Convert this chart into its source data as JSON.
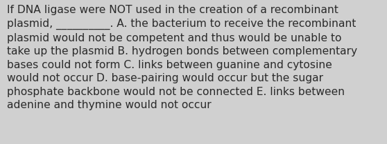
{
  "lines": [
    "If DNA ligase were NOT used in the creation of a recombinant",
    "plasmid, __________. A. the bacterium to receive the recombinant",
    "plasmid would not be competent and thus would be unable to",
    "take up the plasmid B. hydrogen bonds between complementary",
    "bases could not form C. links between guanine and cytosine",
    "would not occur D. base-pairing would occur but the sugar",
    "phosphate backbone would not be connected E. links between",
    "adenine and thymine would not occur"
  ],
  "background_color": "#d0d0d0",
  "text_color": "#2a2a2a",
  "font_size": 11.2,
  "fig_width": 5.58,
  "fig_height": 2.09,
  "dpi": 100
}
